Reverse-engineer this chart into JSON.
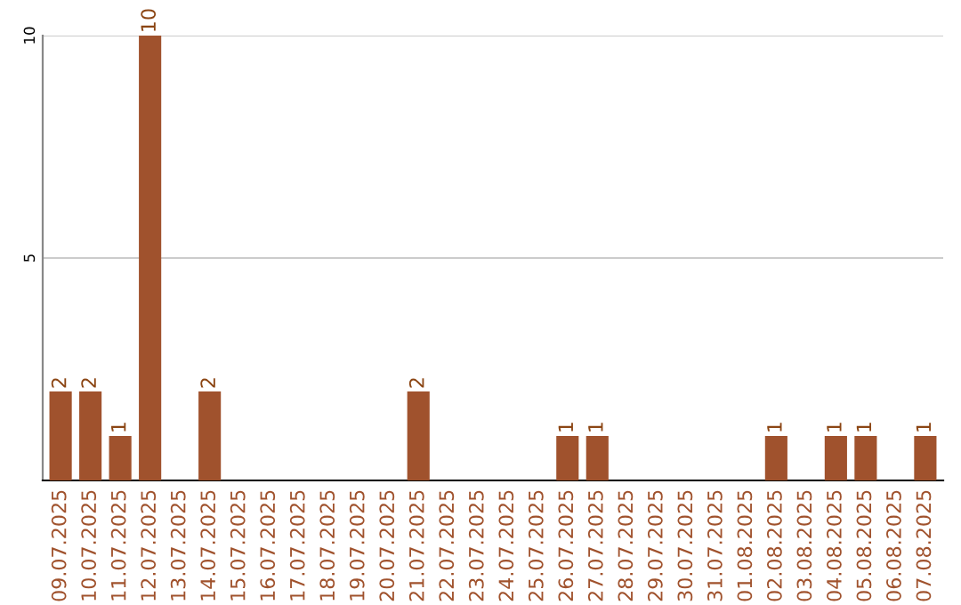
{
  "chart_data": {
    "type": "bar",
    "categories": [
      "09.07.2025",
      "10.07.2025",
      "11.07.2025",
      "12.07.2025",
      "13.07.2025",
      "14.07.2025",
      "15.07.2025",
      "16.07.2025",
      "17.07.2025",
      "18.07.2025",
      "19.07.2025",
      "20.07.2025",
      "21.07.2025",
      "22.07.2025",
      "23.07.2025",
      "24.07.2025",
      "25.07.2025",
      "26.07.2025",
      "27.07.2025",
      "28.07.2025",
      "29.07.2025",
      "30.07.2025",
      "31.07.2025",
      "01.08.2025",
      "02.08.2025",
      "03.08.2025",
      "04.08.2025",
      "05.08.2025",
      "06.08.2025",
      "07.08.2025"
    ],
    "values": [
      2,
      2,
      1,
      10,
      0,
      2,
      0,
      0,
      0,
      0,
      0,
      0,
      2,
      0,
      0,
      0,
      0,
      1,
      1,
      0,
      0,
      0,
      0,
      0,
      1,
      0,
      1,
      1,
      0,
      1
    ],
    "value_labels": [
      "2",
      "2",
      "1",
      "10",
      null,
      "2",
      null,
      null,
      null,
      null,
      null,
      null,
      "2",
      null,
      null,
      null,
      null,
      "1",
      "1",
      null,
      null,
      null,
      null,
      null,
      "1",
      null,
      "1",
      "1",
      null,
      "1"
    ],
    "color": "#a0522d",
    "ylim": [
      0,
      10
    ],
    "yticks": [
      5,
      10
    ],
    "grid": "y",
    "legend": false
  }
}
